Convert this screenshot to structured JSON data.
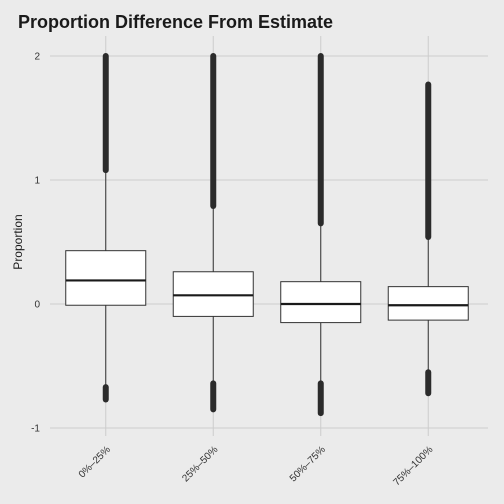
{
  "chart_data": {
    "type": "boxplot",
    "title": "Proportion Difference From Estimate",
    "xlabel": "",
    "ylabel": "Proportion",
    "ylim": [
      -1,
      2
    ],
    "yticks": [
      -1,
      0,
      1,
      2
    ],
    "grid": true,
    "legend": "none",
    "categories": [
      "0%–25%",
      "25%–50%",
      "50%–75%",
      "75%–100%"
    ],
    "boxes": [
      {
        "q1": -0.01,
        "median": 0.19,
        "q3": 0.43,
        "whisker_low": -0.67,
        "whisker_high": 1.08,
        "outliers_low": [
          -0.67,
          -0.77
        ],
        "outliers_high": [
          1.08,
          2.0
        ]
      },
      {
        "q1": -0.1,
        "median": 0.07,
        "q3": 0.26,
        "whisker_low": -0.64,
        "whisker_high": 0.79,
        "outliers_low": [
          -0.64,
          -0.85
        ],
        "outliers_high": [
          0.79,
          2.0
        ]
      },
      {
        "q1": -0.15,
        "median": 0.0,
        "q3": 0.18,
        "whisker_low": -0.64,
        "whisker_high": 0.65,
        "outliers_low": [
          -0.64,
          -0.88
        ],
        "outliers_high": [
          0.65,
          2.0
        ]
      },
      {
        "q1": -0.13,
        "median": -0.01,
        "q3": 0.14,
        "whisker_low": -0.55,
        "whisker_high": 0.54,
        "outliers_low": [
          -0.55,
          -0.72
        ],
        "outliers_high": [
          0.54,
          1.77
        ]
      }
    ]
  },
  "colors": {
    "panel": "#ebebeb",
    "grid": "#cccccc",
    "box_fill": "#ffffff",
    "box_stroke": "#333333",
    "median": "#1a1a1a",
    "outlier": "#2b2b2b"
  }
}
